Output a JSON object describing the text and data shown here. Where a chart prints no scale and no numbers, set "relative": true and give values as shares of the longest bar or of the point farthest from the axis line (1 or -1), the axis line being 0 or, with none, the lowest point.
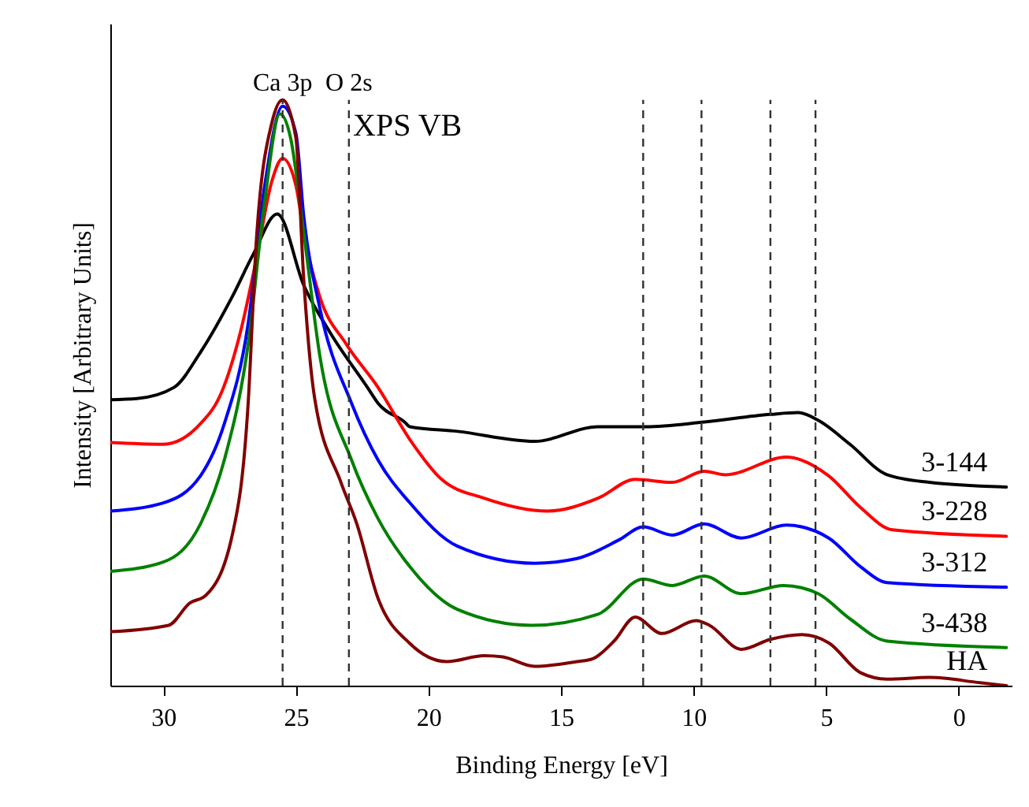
{
  "chart_data": {
    "type": "line",
    "title": "XPS VB",
    "xlabel": "Binding Energy [eV]",
    "ylabel": "Intensity [Arbitrary Units]",
    "relative": true,
    "xlim": [
      32,
      -2
    ],
    "xticks": [
      30,
      25,
      20,
      15,
      10,
      5,
      0
    ],
    "grid": false,
    "legend": false,
    "line_style": "solid",
    "marker": "none",
    "ref_lines": [
      {
        "axis": "x",
        "value": 25.5,
        "label": "Ca 3p"
      },
      {
        "axis": "x",
        "value": 23,
        "label": "O 2s"
      },
      {
        "axis": "x",
        "value": 11.9
      },
      {
        "axis": "x",
        "value": 9.7
      },
      {
        "axis": "x",
        "value": 7.1
      },
      {
        "axis": "x",
        "value": 5.4
      }
    ],
    "series": [
      {
        "name": "3-144",
        "color": "#000000",
        "x": [
          32,
          31,
          29.6,
          28.6,
          27.4,
          26.6,
          25.7,
          24.7,
          23.7,
          22.3,
          21.9,
          20.9,
          20.7,
          18.9,
          16,
          13.6,
          11.8,
          9.6,
          7.1,
          6.05,
          5.3,
          4.1,
          2.7,
          1.1,
          -1.8
        ],
        "values": [
          0.488,
          0.49,
          0.509,
          0.569,
          0.664,
          0.737,
          0.805,
          0.683,
          0.602,
          0.509,
          0.482,
          0.45,
          0.442,
          0.434,
          0.417,
          0.442,
          0.442,
          0.45,
          0.463,
          0.466,
          0.453,
          0.412,
          0.36,
          0.347,
          0.339
        ]
      },
      {
        "name": "3-228",
        "color": "#ff0000",
        "x": [
          32,
          30,
          28.6,
          27.8,
          27.1,
          26.5,
          25.9,
          25.5,
          25,
          24.7,
          24.1,
          23.1,
          21.9,
          20.7,
          19.5,
          17.9,
          15.5,
          13.6,
          12.2,
          10.8,
          9.6,
          8.8,
          6.5,
          4.9,
          3.7,
          2.5,
          -1.8
        ],
        "values": [
          0.415,
          0.412,
          0.447,
          0.501,
          0.602,
          0.726,
          0.862,
          0.9,
          0.854,
          0.772,
          0.664,
          0.583,
          0.509,
          0.42,
          0.352,
          0.32,
          0.298,
          0.32,
          0.352,
          0.347,
          0.366,
          0.36,
          0.39,
          0.358,
          0.304,
          0.266,
          0.255
        ]
      },
      {
        "name": "3-312",
        "color": "#0000ff",
        "x": [
          32,
          30,
          28.6,
          27.7,
          26.8,
          26.2,
          25.5,
          25,
          24.7,
          24.1,
          22.9,
          21.9,
          20.7,
          18.9,
          16,
          14.4,
          12.8,
          11.9,
          10.8,
          9.6,
          8.2,
          6.5,
          4.9,
          3.7,
          2.7,
          -1.8
        ],
        "values": [
          0.298,
          0.312,
          0.358,
          0.447,
          0.618,
          0.846,
          0.989,
          0.943,
          0.8,
          0.645,
          0.482,
          0.385,
          0.312,
          0.238,
          0.209,
          0.217,
          0.249,
          0.271,
          0.257,
          0.276,
          0.252,
          0.274,
          0.252,
          0.203,
          0.176,
          0.168
        ]
      },
      {
        "name": "3-438",
        "color": "#008000",
        "x": [
          32,
          30,
          28.6,
          27.7,
          26.8,
          26.2,
          25.6,
          25.2,
          24.7,
          24.1,
          22.9,
          21.9,
          20.7,
          18.9,
          16.1,
          13.6,
          11.9,
          10.8,
          9.6,
          8.2,
          6.6,
          5.3,
          4.1,
          2.7,
          -1.8
        ],
        "values": [
          0.195,
          0.211,
          0.276,
          0.385,
          0.583,
          0.818,
          0.976,
          0.935,
          0.772,
          0.564,
          0.385,
          0.285,
          0.203,
          0.13,
          0.103,
          0.122,
          0.182,
          0.171,
          0.187,
          0.157,
          0.171,
          0.157,
          0.114,
          0.076,
          0.065
        ]
      },
      {
        "name": "HA",
        "color": "#800000",
        "x": [
          32,
          29.8,
          29,
          28.4,
          27.4,
          26.8,
          26.5,
          25.9,
          25.5,
          25,
          24.7,
          24.3,
          23.3,
          22.7,
          21.9,
          20.7,
          19.3,
          17.9,
          17.2,
          16,
          14.4,
          13.8,
          13,
          12.2,
          11.2,
          9.9,
          9.4,
          8.2,
          7.1,
          5.9,
          4.9,
          3.7,
          2.7,
          1.1,
          -0.8,
          -1.8
        ],
        "values": [
          0.092,
          0.103,
          0.141,
          0.154,
          0.257,
          0.482,
          0.753,
          0.962,
          1,
          0.935,
          0.691,
          0.493,
          0.347,
          0.276,
          0.149,
          0.072,
          0.041,
          0.051,
          0.049,
          0.033,
          0.041,
          0.046,
          0.076,
          0.117,
          0.089,
          0.111,
          0.103,
          0.062,
          0.079,
          0.087,
          0.073,
          0.022,
          0.011,
          0.014,
          0.005,
          0
        ]
      }
    ]
  }
}
